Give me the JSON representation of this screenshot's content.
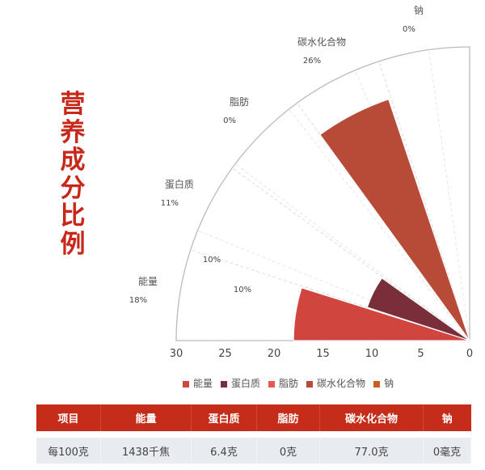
{
  "title": "营养成分比例",
  "chart_data": {
    "type": "polar-bar",
    "categories": [
      "能量",
      "蛋白质",
      "脂肪",
      "碳水化合物",
      "钠"
    ],
    "values": [
      18,
      11,
      0,
      26,
      0
    ],
    "category_labels": [
      "18%",
      "11%",
      "0%",
      "26%",
      "0%"
    ],
    "inner_labels": [
      "10%",
      "10%"
    ],
    "colors": [
      "#d0463f",
      "#7a2e39",
      "#e9574e",
      "#b84a38",
      "#c5601f"
    ],
    "radial_ticks": [
      "30",
      "25",
      "20",
      "15",
      "10",
      "5",
      "0"
    ],
    "rlim": [
      0,
      30
    ],
    "angle_range_deg": [
      90,
      180
    ],
    "grid": true,
    "legend": "bottom"
  },
  "table": {
    "headers": [
      "项目",
      "能量",
      "蛋白质",
      "脂肪",
      "碳水化合物",
      "钠"
    ],
    "rows": [
      [
        "每100克",
        "1438千焦",
        "6.4克",
        "0克",
        "77.0克",
        "0毫克"
      ]
    ]
  }
}
